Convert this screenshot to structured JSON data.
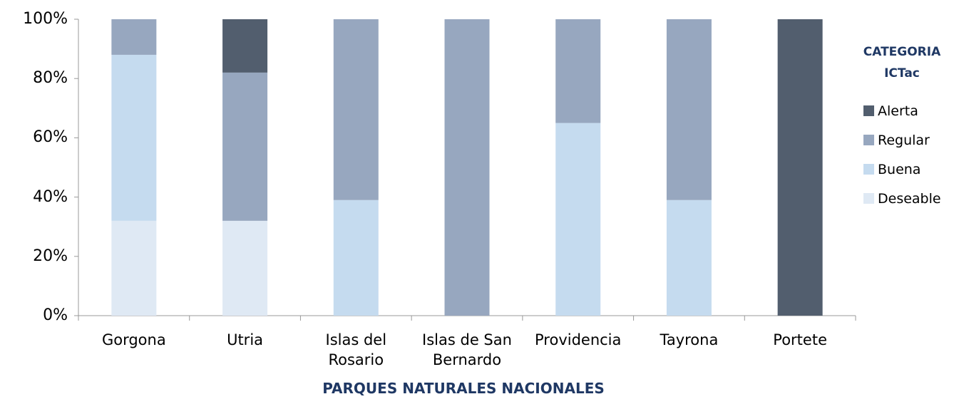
{
  "chart_data": {
    "type": "stacked_bar",
    "categories": [
      "Gorgona",
      "Utria",
      "Islas del Rosario",
      "Islas de San Bernardo",
      "Providencia",
      "Tayrona",
      "Portete"
    ],
    "series": [
      {
        "name": "Deseable",
        "color": "#dfe9f4",
        "values": [
          32,
          32,
          0,
          0,
          0,
          0,
          0
        ]
      },
      {
        "name": "Buena",
        "color": "#c5dbef",
        "values": [
          56,
          0,
          39,
          0,
          65,
          39,
          0
        ]
      },
      {
        "name": "Regular",
        "color": "#97a7bf",
        "values": [
          12,
          50,
          61,
          100,
          35,
          61,
          0
        ]
      },
      {
        "name": "Alerta",
        "color": "#525e6e",
        "values": [
          0,
          18,
          0,
          0,
          0,
          0,
          100
        ]
      }
    ],
    "ylim": [
      0,
      100
    ],
    "yticks": [
      {
        "value": 0,
        "label": "0%"
      },
      {
        "value": 20,
        "label": "20%"
      },
      {
        "value": 40,
        "label": "40%"
      },
      {
        "value": 60,
        "label": "60%"
      },
      {
        "value": 80,
        "label": "80%"
      },
      {
        "value": 100,
        "label": "100%"
      }
    ],
    "xlabel": "PARQUES NATURALES NACIONALES",
    "legend_title": "CATEGORIA ICTac",
    "legend_position": "right"
  }
}
